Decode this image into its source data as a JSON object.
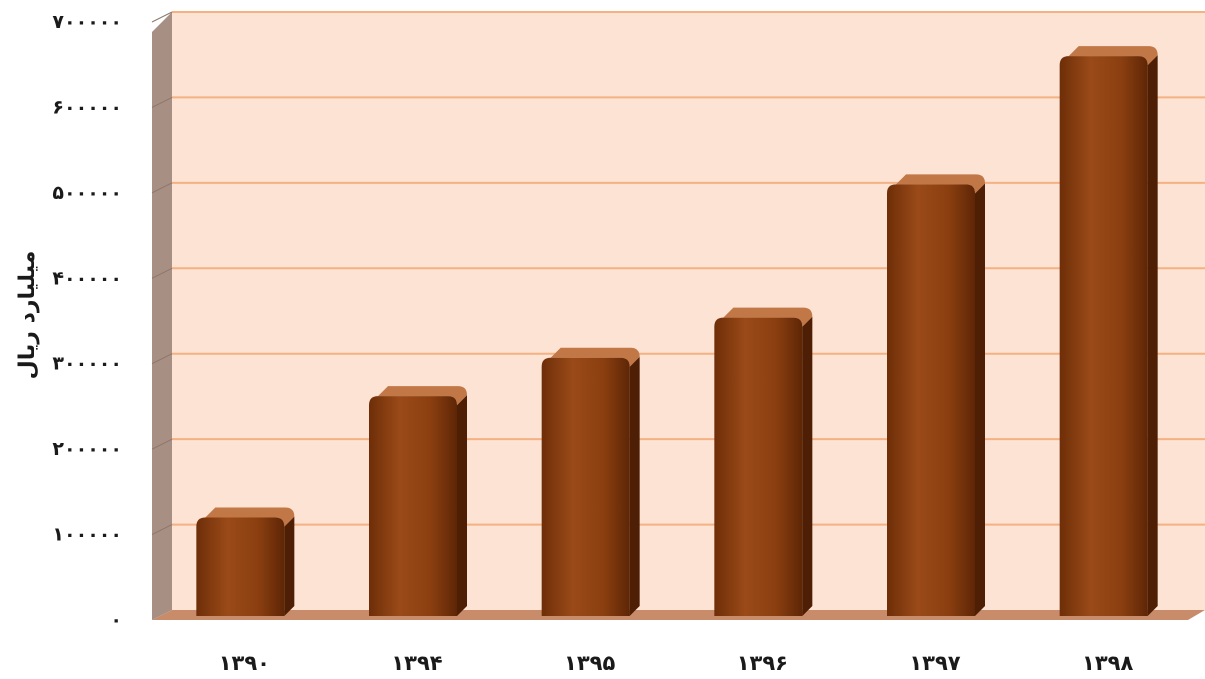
{
  "chart_data": {
    "type": "bar",
    "categories": [
      "۱۳۹۰",
      "۱۳۹۴",
      "۱۳۹۵",
      "۱۳۹۶",
      "۱۳۹۷",
      "۱۳۹۸"
    ],
    "values": [
      120000,
      262000,
      307000,
      354000,
      510000,
      660000
    ],
    "ylabel": "میلیارد ریال",
    "ylim": [
      0,
      700000
    ],
    "yticks": [
      0,
      100000,
      200000,
      300000,
      400000,
      500000,
      600000,
      700000
    ],
    "ytick_labels": [
      "۰",
      "۱۰۰۰۰۰",
      "۲۰۰۰۰۰",
      "۳۰۰۰۰۰",
      "۴۰۰۰۰۰",
      "۵۰۰۰۰۰",
      "۶۰۰۰۰۰",
      "۷۰۰۰۰۰"
    ],
    "grid": true,
    "colors": {
      "bar": "#8B3F10",
      "bar_top": "#C27746",
      "bar_side": "#4E1F05",
      "back_wall": "#FDE3D3",
      "side_wall": "#A88F84",
      "floor": "#C98C6B",
      "gridline": "#F4B183"
    }
  }
}
